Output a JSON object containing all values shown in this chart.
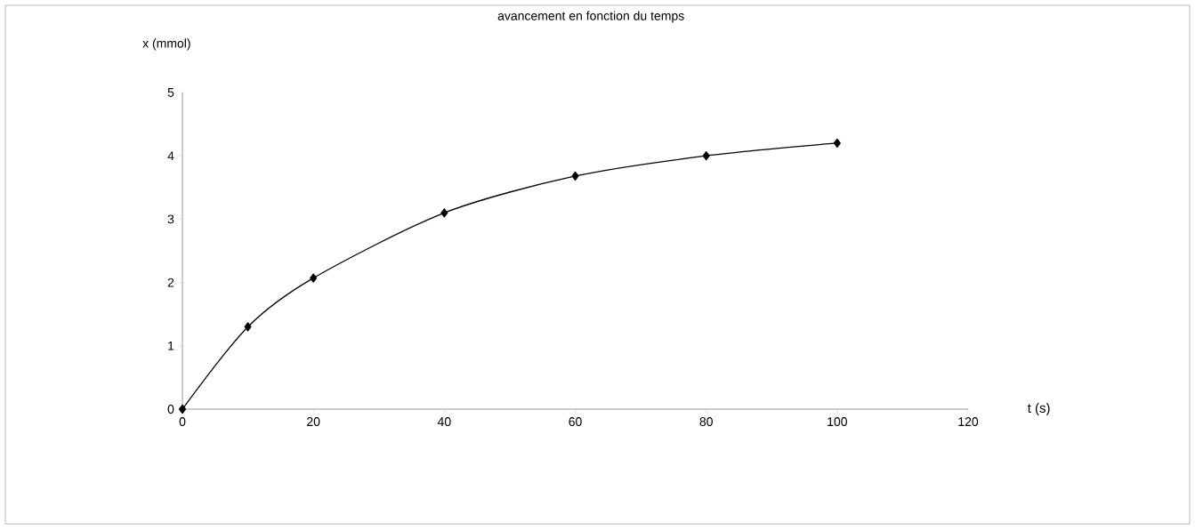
{
  "chart_data": {
    "type": "line",
    "title": "avancement en fonction du temps",
    "xlabel": "t (s)",
    "ylabel": "x (mmol)",
    "x": [
      0,
      10,
      20,
      40,
      60,
      80,
      100
    ],
    "values": [
      0,
      1.3,
      2.07,
      3.1,
      3.68,
      4.0,
      4.2
    ],
    "color": "#000000",
    "marker": "diamond",
    "line_style": "solid",
    "xlim": [
      0,
      120
    ],
    "ylim": [
      0,
      5
    ],
    "xticks": [
      0,
      20,
      40,
      60,
      80,
      100,
      120
    ],
    "yticks": [
      0,
      1,
      2,
      3,
      4,
      5
    ]
  }
}
